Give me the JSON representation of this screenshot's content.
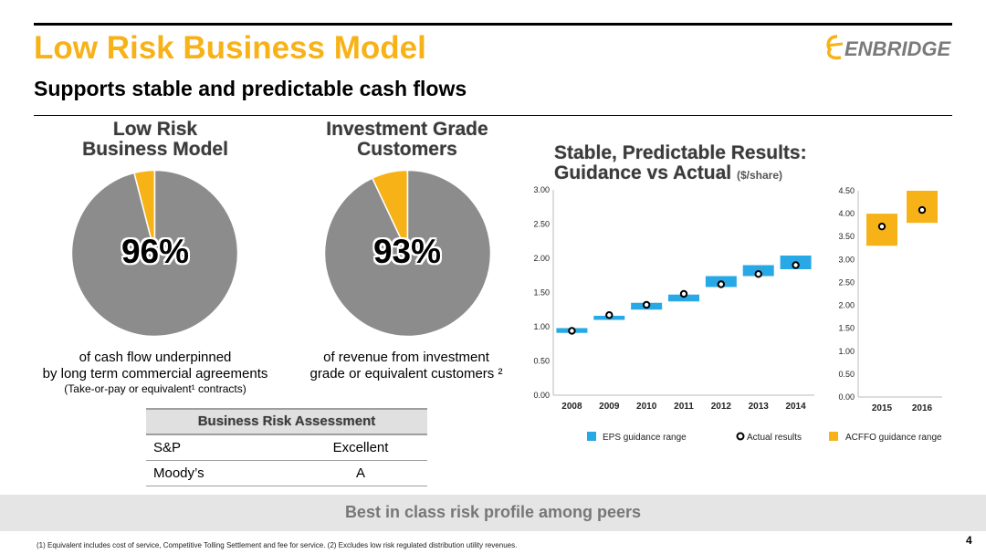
{
  "slide": {
    "title": "Low Risk Business Model",
    "subtitle": "Supports stable and predictable cash flows",
    "logo_text": "ENBRIDGE",
    "banner": "Best in class risk profile among peers",
    "footnote": "(1)  Equivalent includes cost of service, Competitive Tolling Settlement and fee for service.  (2)  Excludes low risk regulated distribution utility revenues.",
    "page_number": "4"
  },
  "pies": {
    "left": {
      "heading_1": "Low Risk",
      "heading_2": "Business Model",
      "percent_label": "96%",
      "caption_1": "of cash flow underpinned",
      "caption_2": "by long term commercial agreements",
      "note": "(Take-or-pay or equivalent¹ contracts)"
    },
    "right": {
      "heading_1": "Investment Grade",
      "heading_2": "Customers",
      "percent_label": "93%",
      "caption_1": "of revenue from investment",
      "caption_2": "grade or equivalent customers ²"
    }
  },
  "risk_table": {
    "header": "Business Risk Assessment",
    "rows": [
      {
        "agency": "S&P",
        "rating": "Excellent"
      },
      {
        "agency": "Moody’s",
        "rating": "A"
      }
    ]
  },
  "chart_header": {
    "title_1": "Stable, Predictable Results:",
    "title_2": "Guidance vs Actual",
    "units": "($/share)"
  },
  "chart_data": [
    {
      "type": "pie",
      "values": [
        96,
        4
      ],
      "colors": [
        "#8c8c8c",
        "#f7b218"
      ]
    },
    {
      "type": "pie",
      "values": [
        93,
        7
      ],
      "colors": [
        "#8c8c8c",
        "#f7b218"
      ]
    },
    {
      "type": "bar",
      "title": "",
      "categories": [
        "2008",
        "2009",
        "2010",
        "2011",
        "2012",
        "2013",
        "2014"
      ],
      "ylim": [
        0,
        3.0
      ],
      "y_ticks": [
        "0.00",
        "0.50",
        "1.00",
        "1.50",
        "2.00",
        "2.50",
        "3.00"
      ],
      "guidance_low": [
        0.91,
        1.1,
        1.25,
        1.37,
        1.58,
        1.74,
        1.84
      ],
      "guidance_high": [
        0.98,
        1.16,
        1.35,
        1.47,
        1.74,
        1.9,
        2.04
      ],
      "actual": [
        0.94,
        1.17,
        1.32,
        1.48,
        1.62,
        1.77,
        1.9
      ],
      "color": "#29a8e6",
      "grid": false
    },
    {
      "type": "bar",
      "title": "",
      "categories": [
        "2015",
        "2016"
      ],
      "ylim": [
        0,
        4.5
      ],
      "y_ticks": [
        "0.00",
        "0.50",
        "1.00",
        "1.50",
        "2.00",
        "2.50",
        "3.00",
        "3.50",
        "4.00",
        "4.50"
      ],
      "guidance_low": [
        3.3,
        3.8
      ],
      "guidance_high": [
        4.0,
        4.5
      ],
      "actual": [
        3.72,
        4.08
      ],
      "color": "#f7b218",
      "grid": false
    }
  ],
  "legend": {
    "eps": "EPS guidance range",
    "actual": "Actual results",
    "acffo": "ACFFO guidance range",
    "eps_color": "#29a8e6",
    "acffo_color": "#f7b218"
  }
}
